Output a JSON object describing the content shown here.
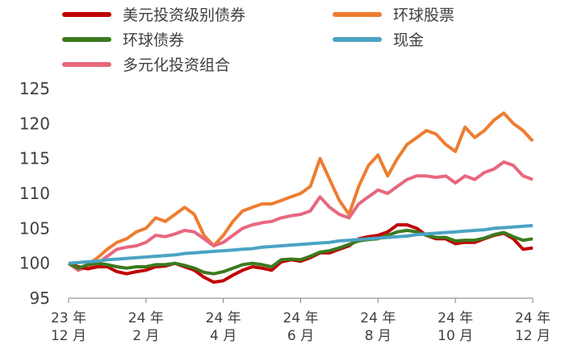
{
  "chart_data": {
    "type": "line",
    "categories": [
      "23 年\n12 月",
      null,
      null,
      null,
      null,
      null,
      null,
      null,
      "24 年\n2 月",
      null,
      null,
      null,
      null,
      null,
      null,
      null,
      "24 年\n4 月",
      null,
      null,
      null,
      null,
      null,
      null,
      null,
      "24 年\n6 月",
      null,
      null,
      null,
      null,
      null,
      null,
      null,
      "24 年\n8 月",
      null,
      null,
      null,
      null,
      null,
      null,
      null,
      "24 年\n10 月",
      null,
      null,
      null,
      null,
      null,
      null,
      null,
      "24 年\n12 月"
    ],
    "series": [
      {
        "name": "美元投资级别债券",
        "color": "#c00000",
        "values": [
          100,
          99.5,
          99.2,
          99.5,
          99.5,
          98.8,
          98.5,
          98.8,
          99,
          99.5,
          99.6,
          100,
          99.5,
          99,
          98,
          97.3,
          97.5,
          98.3,
          99,
          99.5,
          99.3,
          99,
          100.2,
          100.5,
          100.3,
          100.8,
          101.5,
          101.5,
          102,
          102.5,
          103.5,
          103.8,
          104,
          104.5,
          105.5,
          105.5,
          105,
          104,
          103.5,
          103.5,
          102.8,
          103,
          103,
          103.5,
          104,
          104.3,
          103.5,
          102,
          102.2
        ]
      },
      {
        "name": "环球股票",
        "color": "#ed7d31",
        "values": [
          100,
          99,
          99.8,
          100.8,
          102,
          103,
          103.5,
          104.5,
          105,
          106.5,
          106,
          107,
          108,
          107,
          104,
          102.5,
          104,
          106,
          107.5,
          108,
          108.5,
          108.5,
          109,
          109.5,
          110,
          111,
          115,
          112,
          109,
          107,
          111,
          114,
          115.5,
          112.5,
          115,
          117,
          118,
          119,
          118.5,
          117,
          116,
          119.5,
          118,
          119,
          120.5,
          121.5,
          120,
          119,
          117.5
        ]
      },
      {
        "name": "环球债券",
        "color": "#3b7a1e",
        "values": [
          100,
          99.3,
          99.8,
          100,
          99.8,
          99.5,
          99.3,
          99.5,
          99.5,
          99.8,
          99.8,
          100,
          99.7,
          99.3,
          98.7,
          98.5,
          98.8,
          99.3,
          99.8,
          100,
          99.8,
          99.5,
          100.5,
          100.6,
          100.5,
          101,
          101.6,
          101.8,
          102.2,
          102.7,
          103.2,
          103.4,
          103.5,
          104,
          104.5,
          104.7,
          104.5,
          104,
          103.7,
          103.7,
          103.2,
          103.3,
          103.3,
          103.6,
          104.1,
          104.4,
          103.8,
          103.3,
          103.5
        ]
      },
      {
        "name": "现金",
        "color": "#4ba3c3",
        "values": [
          100.0,
          100.1,
          100.2,
          100.3,
          100.5,
          100.6,
          100.7,
          100.8,
          100.9,
          101.0,
          101.1,
          101.2,
          101.4,
          101.5,
          101.6,
          101.7,
          101.8,
          101.9,
          102.0,
          102.1,
          102.3,
          102.4,
          102.5,
          102.6,
          102.7,
          102.8,
          102.9,
          103.0,
          103.2,
          103.3,
          103.4,
          103.5,
          103.6,
          103.7,
          103.8,
          103.9,
          104.1,
          104.2,
          104.3,
          104.4,
          104.5,
          104.6,
          104.7,
          104.8,
          105.0,
          105.1,
          105.2,
          105.3,
          105.4
        ]
      },
      {
        "name": "多元化投资组合",
        "color": "#e8677f",
        "values": [
          100,
          99,
          99.5,
          100,
          101,
          102,
          102.3,
          102.5,
          103,
          104,
          103.8,
          104.2,
          104.7,
          104.5,
          103.5,
          102.5,
          103,
          104,
          105,
          105.5,
          105.8,
          106,
          106.5,
          106.8,
          107,
          107.5,
          109.5,
          108,
          107,
          106.5,
          108.5,
          109.5,
          110.5,
          110,
          111,
          112,
          112.5,
          112.5,
          112.3,
          112.5,
          111.5,
          112.5,
          112,
          113,
          113.5,
          114.5,
          114,
          112.5,
          112
        ]
      }
    ],
    "ylim": [
      95,
      125
    ],
    "yticks": [
      95,
      100,
      105,
      110,
      115,
      120,
      125
    ],
    "legend": "top",
    "grid": false
  }
}
